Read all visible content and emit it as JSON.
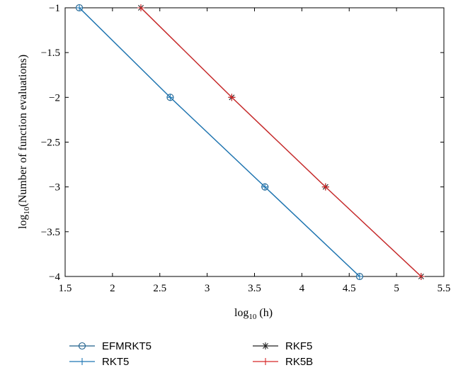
{
  "chart_data": {
    "type": "line",
    "xlabel": {
      "base": "log",
      "sub": "10",
      "rest": " (h)"
    },
    "ylabel": {
      "base": "log",
      "sub": "10",
      "rest": "(Number of function evaluations)"
    },
    "xlim": [
      1.5,
      5.5
    ],
    "ylim": [
      -4,
      -1
    ],
    "xticks": [
      1.5,
      2,
      2.5,
      3,
      3.5,
      4,
      4.5,
      5,
      5.5
    ],
    "xtick_labels": [
      "1.5",
      "2",
      "2.5",
      "3",
      "3.5",
      "4",
      "4.5",
      "5",
      "5.5"
    ],
    "yticks": [
      -1,
      -1.5,
      -2,
      -2.5,
      -3,
      -3.5,
      -4
    ],
    "ytick_labels": [
      "−1",
      "−1.5",
      "−2",
      "−2.5",
      "−3",
      "−3.5",
      "−4"
    ],
    "grid": false,
    "legend_position": "bottom",
    "series": [
      {
        "name": "EFMRKT5",
        "x": [
          1.65,
          2.61,
          3.61,
          4.61
        ],
        "y": [
          -1,
          -2,
          -3,
          -4
        ],
        "color": "#1f5f8b",
        "marker": "circle"
      },
      {
        "name": "RKT5",
        "x": [
          1.65,
          2.61,
          3.61,
          4.61
        ],
        "y": [
          -1,
          -2,
          -3,
          -4
        ],
        "color": "#1f77b4",
        "marker": "plus"
      },
      {
        "name": "RKF5",
        "x": [
          2.3,
          3.26,
          4.25,
          5.26
        ],
        "y": [
          -1,
          -2,
          -3,
          -4
        ],
        "color": "#222222",
        "marker": "star"
      },
      {
        "name": "RK5B",
        "x": [
          2.3,
          3.26,
          4.25,
          5.26
        ],
        "y": [
          -1,
          -2,
          -3,
          -4
        ],
        "color": "#d62728",
        "marker": "plus"
      }
    ]
  }
}
